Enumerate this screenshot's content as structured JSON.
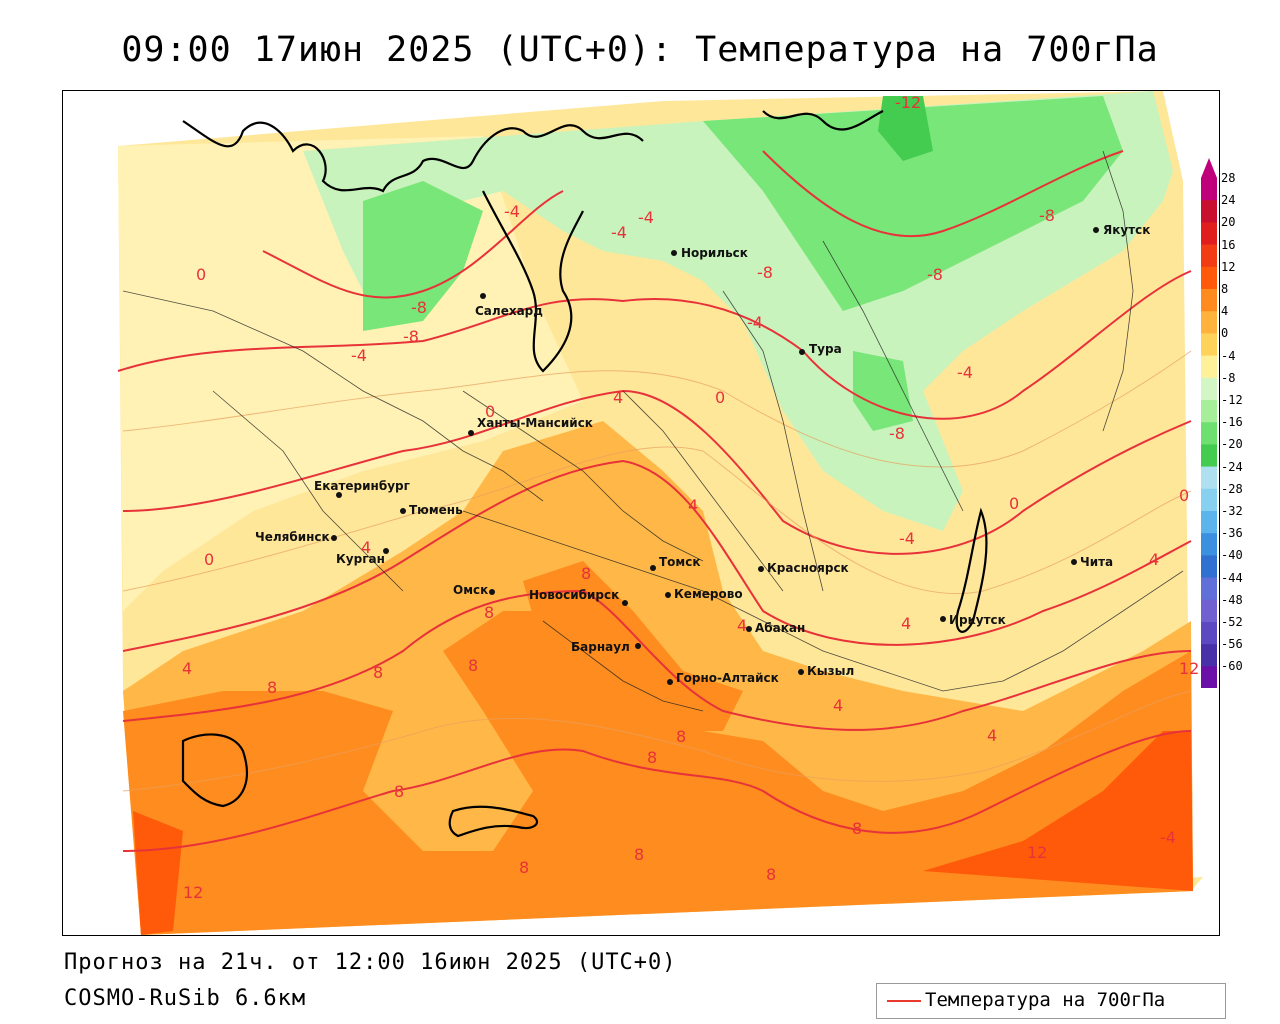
{
  "title": "09:00 17июн 2025 (UTC+0): Температура на 700гПа",
  "footer": {
    "forecast": "Прогноз на 21ч. от 12:00 16июн 2025 (UTC+0)",
    "model": "COSMO-RuSib 6.6км"
  },
  "legend": {
    "label": "Температура на 700гПа",
    "line_color": "#e83a2c"
  },
  "colorbar": {
    "labels": [
      "28",
      "24",
      "20",
      "16",
      "12",
      "8",
      "4",
      "0",
      "-4",
      "-8",
      "-12",
      "-16",
      "-20",
      "-24",
      "-28",
      "-32",
      "-36",
      "-40",
      "-44",
      "-48",
      "-52",
      "-56",
      "-60"
    ],
    "colors": [
      "#c0007a",
      "#c8102e",
      "#e01e1e",
      "#f23c14",
      "#ff5a0a",
      "#ff8a1e",
      "#ffb23c",
      "#ffd25a",
      "#fff09a",
      "#d2f7c4",
      "#a6ee9a",
      "#6ee070",
      "#44cc50",
      "#aee0f0",
      "#88d0f0",
      "#5cb4ec",
      "#3c90e0",
      "#3070d0",
      "#6070d8",
      "#7060d0",
      "#5c48c0",
      "#4830a8",
      "#6a0fa8"
    ]
  },
  "cities": [
    {
      "name": "Якутск"
    },
    {
      "name": "Норильск"
    },
    {
      "name": "Салехард"
    },
    {
      "name": "Тура"
    },
    {
      "name": "Ханты-Мансийск"
    },
    {
      "name": "Екатеринбург"
    },
    {
      "name": "Тюмень"
    },
    {
      "name": "Челябинск"
    },
    {
      "name": "Курган"
    },
    {
      "name": "Омск"
    },
    {
      "name": "Томск"
    },
    {
      "name": "Красноярск"
    },
    {
      "name": "Новосибирск"
    },
    {
      "name": "Кемерово"
    },
    {
      "name": "Барнаул"
    },
    {
      "name": "Абакан"
    },
    {
      "name": "Горно-Алтайск"
    },
    {
      "name": "Кызыл"
    },
    {
      "name": "Иркутск"
    },
    {
      "name": "Чита"
    }
  ],
  "isotherm_labels": [
    "-12",
    "-8",
    "-8",
    "-8",
    "-8",
    "-8",
    "-8",
    "-4",
    "-4",
    "-4",
    "-4",
    "-4",
    "-4",
    "-4",
    "0",
    "0",
    "0",
    "0",
    "0",
    "0",
    "4",
    "4",
    "4",
    "4",
    "4",
    "4",
    "4",
    "4",
    "4",
    "8",
    "8",
    "8",
    "8",
    "8",
    "8",
    "8",
    "8",
    "8",
    "8",
    "8",
    "8",
    "12",
    "12",
    "12",
    "-4"
  ]
}
